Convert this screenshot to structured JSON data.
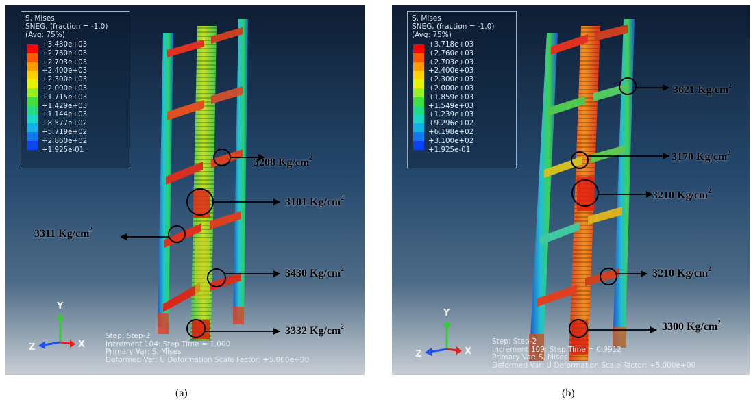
{
  "legend_colors": [
    "#ff0000",
    "#ff5a00",
    "#ff9c00",
    "#ffd200",
    "#e5f400",
    "#9af01e",
    "#40e040",
    "#20dd80",
    "#18d8c8",
    "#12b4e8",
    "#1078f0",
    "#0c44f4",
    "#0a10f8"
  ],
  "panels": [
    {
      "caption": "(a)",
      "legend": {
        "title": "S, Mises",
        "subtitle": "SNEG, (fraction = -1.0)",
        "avg": "(Avg: 75%)",
        "values": [
          "+3.430e+03",
          "+2.760e+03",
          "+2.703e+03",
          "+2.400e+03",
          "+2.300e+03",
          "+2.000e+03",
          "+1.715e+03",
          "+1.429e+03",
          "+1.144e+03",
          "+8.577e+02",
          "+5.719e+02",
          "+2.860e+02",
          "+1.925e-01"
        ]
      },
      "step_info": {
        "step": "Step: Step-2",
        "increment": "Increment    104: Step Time =    1.000",
        "primary": "Primary Var: S, Mises",
        "deformed": "Deformed Var: U   Deformation Scale Factor: +5.000e+00"
      },
      "axes": {
        "y": "Y",
        "z": "Z",
        "x": "X"
      },
      "annotations": [
        {
          "value": "3208",
          "unit": "Kg/cm",
          "exp": "2"
        },
        {
          "value": "3101",
          "unit": "Kg/cm",
          "exp": "2"
        },
        {
          "value": "3311",
          "unit": "Kg/cm",
          "exp": "2"
        },
        {
          "value": "3430",
          "unit": "Kg/cm",
          "exp": "2"
        },
        {
          "value": "3332",
          "unit": "Kg/cm",
          "exp": "2"
        }
      ]
    },
    {
      "caption": "(b)",
      "legend": {
        "title": "S, Mises",
        "subtitle": "SNEG, (fraction = -1.0)",
        "avg": "(Avg: 75%)",
        "values": [
          "+3.718e+03",
          "+2.760e+03",
          "+2.703e+03",
          "+2.400e+03",
          "+2.300e+03",
          "+2.000e+03",
          "+1.859e+03",
          "+1.549e+03",
          "+1.239e+03",
          "+9.296e+02",
          "+6.198e+02",
          "+3.100e+02",
          "+1.925e-01"
        ]
      },
      "step_info": {
        "step": "Step: Step-2",
        "increment": "Increment    109: Step Time =    0.9912",
        "primary": "Primary Var: S, Mises",
        "deformed": "Deformed Var: U   Deformation Scale Factor: +5.000e+00"
      },
      "axes": {
        "y": "Y",
        "z": "Z",
        "x": "X"
      },
      "annotations": [
        {
          "value": "3621",
          "unit": "Kg/cm",
          "exp": "2"
        },
        {
          "value": "3170",
          "unit": "Kg/cm",
          "exp": "2"
        },
        {
          "value": "3210",
          "unit": "Kg/cm",
          "exp": "2"
        },
        {
          "value": "3210",
          "unit": "Kg/cm",
          "exp": "2"
        },
        {
          "value": "3300",
          "unit": "Kg/cm",
          "exp": "2"
        }
      ]
    }
  ]
}
